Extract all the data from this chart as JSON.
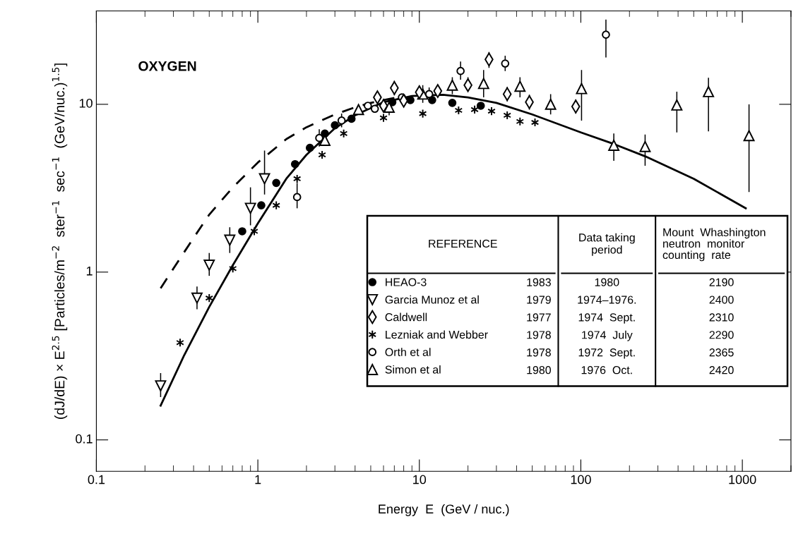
{
  "chart_data": {
    "type": "scatter",
    "title": "OXYGEN",
    "xlabel": "Energy  E  (GeV / nuc.)",
    "ylabel": "(dJ/dE) × E$^{2.5}$ [Particles/m$^{−2}$  ster$^{−1}$  sec$^{−1}$  (GeV/nuc.)$^{1.5}$]",
    "log": "xy",
    "xlim": [
      0.1,
      2000
    ],
    "ylim": [
      0.065,
      36
    ],
    "xticks": [
      0.1,
      1,
      10,
      100,
      1000
    ],
    "yticks": [
      0.1,
      1,
      10
    ],
    "legend": "bottom right",
    "grid": false,
    "series": [
      {
        "name": "HEAO-3",
        "color": "#000000",
        "marker": "circle",
        "x": [
          0.8,
          1.05,
          1.3,
          1.7,
          2.1,
          2.6,
          3.0,
          3.8,
          6.8,
          8.8,
          12,
          16,
          24
        ],
        "values": [
          1.75,
          2.5,
          3.4,
          4.4,
          5.5,
          6.7,
          7.5,
          8.2,
          10.3,
          10.6,
          10.6,
          10.2,
          9.8
        ]
      },
      {
        "name": "Garcia Munoz et al",
        "color": "#000000",
        "marker": "triangle",
        "x": [
          0.25,
          0.42,
          0.5,
          0.67,
          0.9,
          1.1
        ],
        "values": [
          0.21,
          0.7,
          1.1,
          1.55,
          2.4,
          3.6
        ],
        "errors": [
          [
            0.18,
            0.25
          ],
          [
            0.6,
            0.82
          ],
          [
            0.95,
            1.3
          ],
          [
            1.3,
            1.85
          ],
          [
            1.9,
            3.2
          ],
          [
            2.9,
            5.3
          ]
        ]
      },
      {
        "name": "Caldwell",
        "color": "#000000",
        "marker": "diamond",
        "x": [
          5.5,
          6.0,
          7,
          8,
          10,
          13,
          20,
          27,
          35,
          48,
          93
        ],
        "values": [
          11,
          9.8,
          12.5,
          10.5,
          11.8,
          12,
          13,
          18.5,
          11.5,
          10.3,
          9.7
        ],
        "errors": [
          null,
          null,
          [
            11.3,
            13.8
          ],
          null,
          [
            10.8,
            12.8
          ],
          null,
          [
            12,
            14.5
          ],
          [
            16.5,
            20.5
          ],
          [
            10.4,
            12.7
          ],
          [
            9.3,
            11.4
          ],
          [
            8.8,
            10.7
          ]
        ]
      },
      {
        "name": "Lezniak and Webber",
        "color": "#000000",
        "marker": "cross",
        "x": [
          0.33,
          0.5,
          0.7,
          0.95,
          1.3,
          1.75,
          2.5,
          3.4,
          6.0,
          10.5,
          17.5,
          22,
          28,
          35,
          42,
          52
        ],
        "values": [
          0.38,
          0.7,
          1.05,
          1.75,
          2.5,
          3.6,
          5.0,
          6.7,
          8.3,
          8.8,
          9.2,
          9.3,
          9.1,
          8.6,
          7.9,
          7.8
        ]
      },
      {
        "name": "Orth et al",
        "color": "#000000",
        "marker": "circle",
        "x": [
          1.75,
          2.4,
          3.3,
          4.8,
          5.3,
          7.8,
          11.5,
          18,
          34,
          143
        ],
        "values": [
          2.8,
          6.3,
          8.0,
          9.8,
          9.4,
          11,
          11.5,
          15.8,
          17.5,
          26
        ],
        "errors": [
          [
            2.4,
            3.4
          ],
          [
            5.6,
            7.1
          ],
          [
            7.3,
            8.8
          ],
          null,
          null,
          null,
          [
            10.5,
            12.6
          ],
          [
            14,
            18
          ],
          [
            15.8,
            19.5
          ],
          [
            19,
            32
          ]
        ]
      },
      {
        "name": "Simon et al",
        "color": "#000000",
        "marker": "triangle",
        "x": [
          2.6,
          4.2,
          6.5,
          10.5,
          16,
          25,
          42,
          65,
          101,
          160,
          250,
          393,
          617,
          1100
        ],
        "values": [
          6.1,
          9.3,
          9.6,
          11.5,
          13,
          13.3,
          12.8,
          10,
          12.4,
          5.7,
          5.6,
          9.9,
          11.9,
          6.5
        ],
        "errors": [
          null,
          null,
          [
            8.6,
            10.8
          ],
          [
            10.2,
            13
          ],
          [
            11.5,
            14.5
          ],
          [
            11,
            16
          ],
          [
            11,
            14.5
          ],
          [
            8.7,
            11.5
          ],
          [
            8.0,
            16
          ],
          [
            4.6,
            6.7
          ],
          [
            4.3,
            6.6
          ],
          [
            6.8,
            11.9
          ],
          [
            6.9,
            14.4
          ],
          [
            3.0,
            10.0
          ]
        ]
      },
      {
        "type": "line",
        "color": "#000000",
        "line_style": "solid",
        "marker": "none",
        "x": [
          0.25,
          0.35,
          0.5,
          0.7,
          1,
          1.5,
          2,
          3,
          4,
          6,
          9,
          14,
          20,
          30,
          50,
          100,
          160,
          250,
          500,
          1050
        ],
        "values": [
          0.16,
          0.32,
          0.62,
          1.1,
          1.95,
          3.6,
          5.0,
          7.2,
          8.6,
          10.3,
          11.2,
          11.4,
          11.0,
          10.2,
          8.7,
          6.8,
          5.8,
          4.9,
          3.6,
          2.4
        ]
      },
      {
        "type": "line",
        "color": "#000000",
        "line_style": "dashed",
        "marker": "none",
        "x": [
          0.25,
          0.3,
          0.4,
          0.5,
          0.7,
          1,
          1.5,
          2,
          3,
          4,
          5,
          6,
          7
        ],
        "values": [
          0.8,
          1.05,
          1.6,
          2.2,
          3.2,
          4.5,
          6.2,
          7.3,
          8.7,
          9.6,
          10.2,
          10.6,
          10.9
        ]
      }
    ],
    "annotations": [
      "REFERENCE",
      "Data taking\nperiod",
      "Mount  Whashington\nneutron  monitor\ncounting  rate",
      "1983",
      "1980",
      "2190",
      "1979",
      "1974–1976.",
      "2400",
      "1977",
      "1974  Sept.",
      "2310",
      "1978",
      "1974  July",
      "2290",
      "1978",
      "1972  Sept.",
      "2365",
      "1980",
      "1976  Oct.",
      "2420"
    ]
  }
}
